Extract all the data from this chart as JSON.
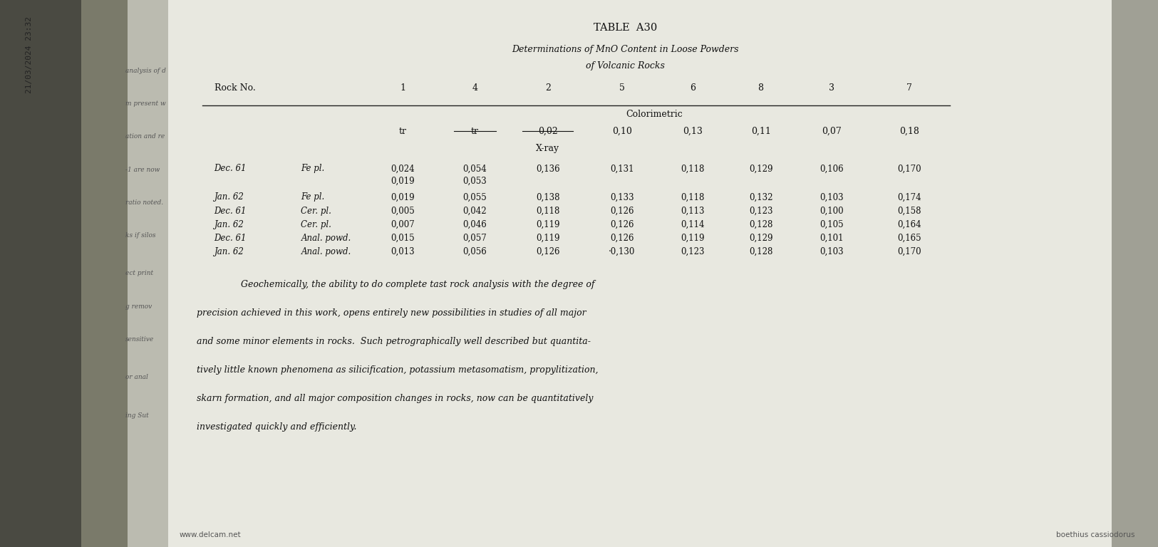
{
  "bg_color": "#d0d0c8",
  "page_bg": "#e8e8e0",
  "timestamp": "21/03/2024 23:32",
  "watermark": "www.delcam.net",
  "attribution": "boethius cassiodorus",
  "title": "TABLE  A30",
  "subtitle1": "Determinations of MnO Content in Loose Powders",
  "subtitle2": "of Volcanic Rocks",
  "col_header_label": "Rock No.",
  "col_numbers": [
    "1",
    "4",
    "2",
    "5",
    "6",
    "8",
    "3",
    "7"
  ],
  "section_colorimetric": "Colorimetric",
  "section_xray": "X-ray",
  "colorimetric_row": [
    "tr",
    "tr",
    "0,02",
    "0,10",
    "0,13",
    "0,11",
    "0,07",
    "0,18"
  ],
  "table_rows": [
    {
      "date": "Dec. 61",
      "type": "Fe pl.",
      "vals": [
        "0,024",
        "0,054",
        "0,136",
        "0,131",
        "0,118",
        "0,129",
        "0,106",
        "0,170"
      ]
    },
    {
      "date": "",
      "type": "",
      "vals": [
        "0,019",
        "0,053",
        "",
        "",
        "",
        "",
        "",
        ""
      ]
    },
    {
      "date": "Jan. 62",
      "type": "Fe pl.",
      "vals": [
        "0,019",
        "0,055",
        "0,138",
        "0,133",
        "0,118",
        "0,132",
        "0,103",
        "0,174"
      ]
    },
    {
      "date": "Dec. 61",
      "type": "Cer. pl.",
      "vals": [
        "0,005",
        "0,042",
        "0,118",
        "0,126",
        "0,113",
        "0,123",
        "0,100",
        "0,158"
      ]
    },
    {
      "date": "Jan. 62",
      "type": "Cer. pl.",
      "vals": [
        "0,007",
        "0,046",
        "0,119",
        "0,126",
        "0,114",
        "0,128",
        "0,105",
        "0,164"
      ]
    },
    {
      "date": "Dec. 61",
      "type": "Anal. powd.",
      "vals": [
        "0,015",
        "0,057",
        "0,119",
        "0,126",
        "0,119",
        "0,129",
        "0,101",
        "0,165"
      ]
    },
    {
      "date": "Jan. 62",
      "type": "Anal. powd.",
      "vals": [
        "0,013",
        "0,056",
        "0,126",
        "·0,130",
        "0,123",
        "0,128",
        "0,103",
        "0,170"
      ]
    }
  ],
  "para_lines": [
    "Geochemically, the ability to do complete tast rock analysis with the degree of",
    "precision achieved in this work, opens entirely new possibilities in studies of all major",
    "and some minor elements in rocks.  Such petrographically well described but quantita-",
    "tively little known phenomena as silicification, potassium metasomatism, propylitization,",
    "skarn formation, and all major composition changes in rocks, now can be quantitatively",
    "investigated quickly and efficiently."
  ],
  "left_sidebar_text": [
    "analysis of d",
    "m present w",
    "ation and re",
    "-1 are now",
    "ratio noted.",
    "ks if silos",
    "ect print",
    "g remov",
    "sensitive",
    "or anal",
    "ing Sut"
  ]
}
